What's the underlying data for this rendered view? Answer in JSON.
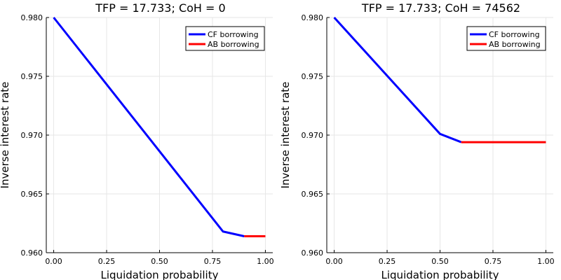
{
  "chart_data": [
    {
      "type": "line",
      "title": "TFP = 17.733; CoH = 0",
      "xlabel": "Liquidation probability",
      "ylabel": "Inverse interest rate",
      "xlim": [
        0,
        1
      ],
      "ylim": [
        0.96,
        0.98
      ],
      "xticks": [
        "0.00",
        "0.25",
        "0.50",
        "0.75",
        "1.00"
      ],
      "yticks": [
        "0.960",
        "0.965",
        "0.970",
        "0.975",
        "0.980"
      ],
      "grid": true,
      "legend_position": "top-right",
      "series": [
        {
          "name": "CF borrowing",
          "color": "#0000ff",
          "x": [
            0,
            0.8,
            0.9
          ],
          "y": [
            0.98,
            0.9618,
            0.9614
          ]
        },
        {
          "name": "AB borrowing",
          "color": "#ff0000",
          "x": [
            0.9,
            1.0
          ],
          "y": [
            0.9614,
            0.9614
          ]
        }
      ]
    },
    {
      "type": "line",
      "title": "TFP = 17.733; CoH = 74562",
      "xlabel": "Liquidation probability",
      "ylabel": "Inverse interest rate",
      "xlim": [
        0,
        1
      ],
      "ylim": [
        0.96,
        0.98
      ],
      "xticks": [
        "0.00",
        "0.25",
        "0.50",
        "0.75",
        "1.00"
      ],
      "yticks": [
        "0.960",
        "0.965",
        "0.970",
        "0.975",
        "0.980"
      ],
      "grid": true,
      "legend_position": "top-right",
      "series": [
        {
          "name": "CF borrowing",
          "color": "#0000ff",
          "x": [
            0,
            0.5,
            0.6
          ],
          "y": [
            0.98,
            0.9701,
            0.9694
          ]
        },
        {
          "name": "AB borrowing",
          "color": "#ff0000",
          "x": [
            0.6,
            0.7,
            0.8,
            0.9,
            1.0
          ],
          "y": [
            0.9694,
            0.9694,
            0.9694,
            0.9694,
            0.9694
          ]
        }
      ]
    }
  ]
}
